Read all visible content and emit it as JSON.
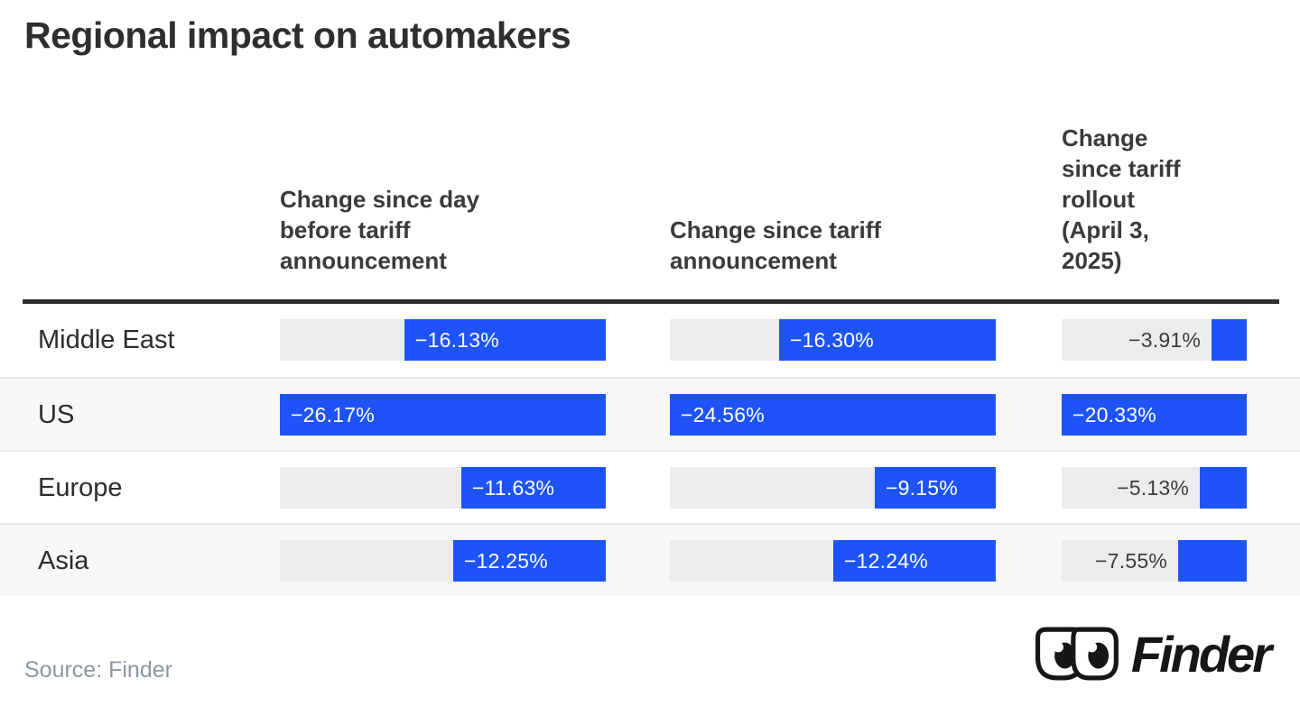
{
  "title": "Regional impact on automakers",
  "source": "Source: Finder",
  "brand": {
    "name": "Finder",
    "logo_icon": "finder-goggles-icon"
  },
  "columns": [
    {
      "header": "Change since day\nbefore tariff\nannouncement"
    },
    {
      "header": "Change since tariff\nannouncement"
    },
    {
      "header": "Change\nsince tariff\nrollout\n(April 3,\n2025)"
    }
  ],
  "chart_data": {
    "type": "bar",
    "orientation": "horizontal",
    "title": "Regional impact on automakers",
    "categories": [
      "Middle East",
      "US",
      "Europe",
      "Asia"
    ],
    "series": [
      {
        "name": "Change since day before tariff announcement",
        "values": [
          -16.13,
          -26.17,
          -11.63,
          -12.25
        ]
      },
      {
        "name": "Change since tariff announcement",
        "values": [
          -16.3,
          -24.56,
          -9.15,
          -12.24
        ]
      },
      {
        "name": "Change since tariff rollout (April 3, 2025)",
        "values": [
          -3.91,
          -20.33,
          -5.13,
          -7.55
        ]
      }
    ],
    "value_labels": [
      [
        "−16.13%",
        "−16.30%",
        "−3.91%"
      ],
      [
        "−26.17%",
        "−24.56%",
        "−20.33%"
      ],
      [
        "−11.63%",
        "−9.15%",
        "−5.13%"
      ],
      [
        "−12.25%",
        "−12.24%",
        "−7.55%"
      ],
      [
        "scaling: each column's bars are proportional to that column's maximum loss (US row fills the track)"
      ]
    ],
    "legend_position": "none",
    "grid": false
  },
  "colors": {
    "bar_blue": "#1e54f7",
    "track_gray": "#ececec",
    "row_stripe": "#f7f7f7",
    "separator": "#e9e9e9",
    "header_rule": "#2d2d2d",
    "title_text": "#2e2e2e",
    "header_text": "#3a3a3a",
    "label_text": "#2c2c2c",
    "value_outside_text": "#3c3c3c",
    "source_text": "#8d97a2",
    "brand_black": "#161616"
  }
}
